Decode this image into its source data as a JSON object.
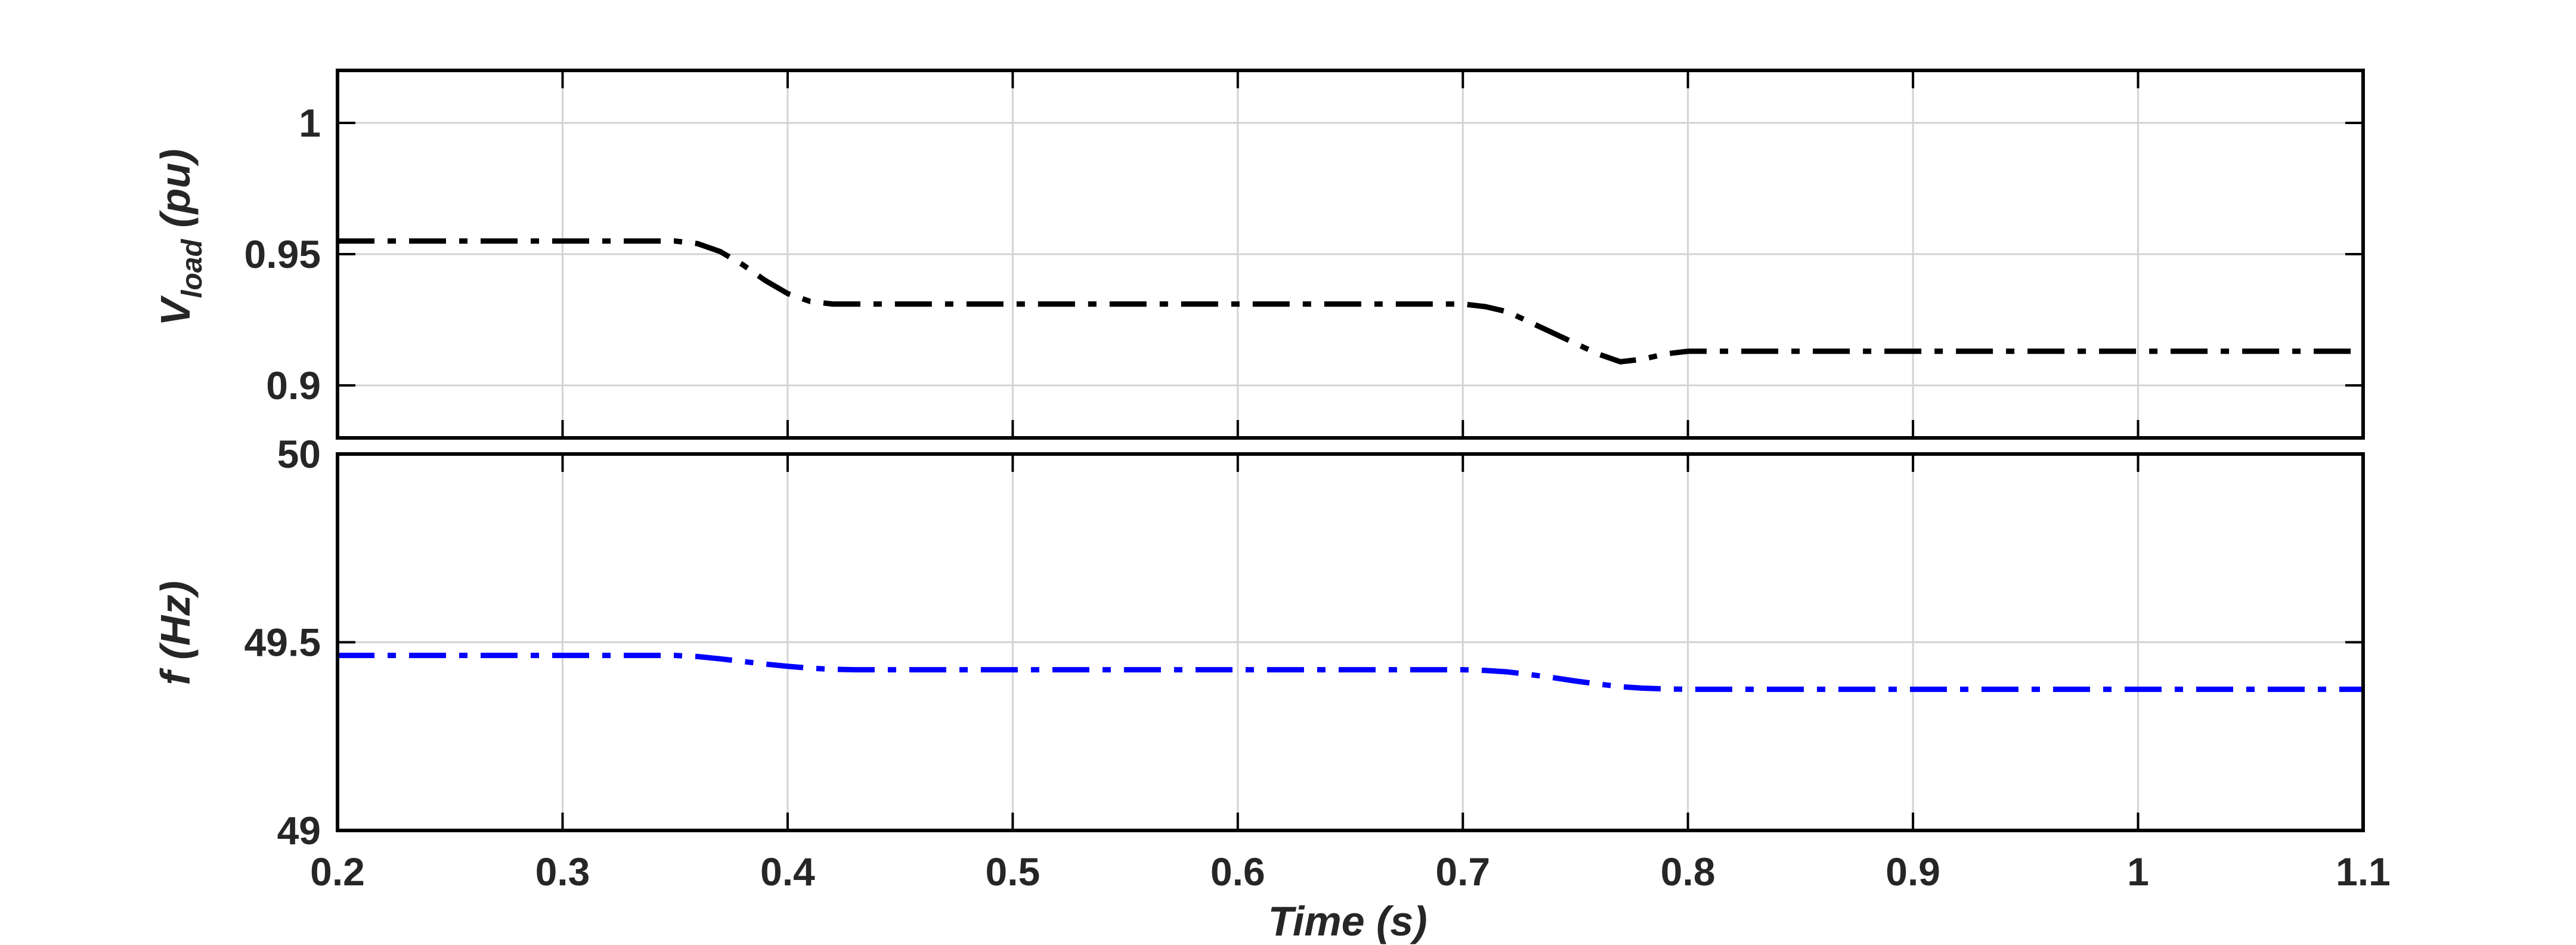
{
  "colors": {
    "background": "#ffffff",
    "frame": "#000000",
    "grid": "#d3d3d3",
    "text": "#262626"
  },
  "chart_data": [
    {
      "type": "line",
      "xlabel": "",
      "ylabel_main": "V",
      "ylabel_sub": "load",
      "ylabel_rest": " (pu)",
      "xlim": [
        0.2,
        1.1
      ],
      "ylim": [
        0.88,
        1.02
      ],
      "xticks": [
        0.2,
        0.3,
        0.4,
        0.5,
        0.6,
        0.7,
        0.8,
        0.9,
        1.0,
        1.1
      ],
      "yticks": [
        0.9,
        0.95,
        1.0
      ],
      "ytick_labels": [
        "0.9",
        "0.95",
        "1"
      ],
      "grid": true,
      "series": [
        {
          "color": "#000000",
          "line_style": "dash-dot",
          "x": [
            0.2,
            0.35,
            0.36,
            0.37,
            0.38,
            0.39,
            0.4,
            0.41,
            0.42,
            0.43,
            0.44,
            0.7,
            0.71,
            0.72,
            0.73,
            0.74,
            0.75,
            0.76,
            0.77,
            0.78,
            0.79,
            0.8,
            1.1
          ],
          "y": [
            0.955,
            0.955,
            0.954,
            0.951,
            0.946,
            0.94,
            0.935,
            0.932,
            0.931,
            0.931,
            0.931,
            0.931,
            0.93,
            0.928,
            0.924,
            0.92,
            0.916,
            0.912,
            0.909,
            0.91,
            0.912,
            0.913,
            0.913
          ]
        }
      ]
    },
    {
      "type": "line",
      "xlabel": "Time (s)",
      "ylabel": "f (Hz)",
      "xlim": [
        0.2,
        1.1
      ],
      "ylim": [
        49,
        50
      ],
      "xticks": [
        0.2,
        0.3,
        0.4,
        0.5,
        0.6,
        0.7,
        0.8,
        0.9,
        1.0,
        1.1
      ],
      "xtick_labels": [
        "0.2",
        "0.3",
        "0.4",
        "0.5",
        "0.6",
        "0.7",
        "0.8",
        "0.9",
        "1",
        "1.1"
      ],
      "yticks": [
        49,
        49.5,
        50
      ],
      "ytick_labels": [
        "49",
        "49.5",
        "50"
      ],
      "grid": true,
      "series": [
        {
          "color": "#0000ff",
          "line_style": "dash-dot",
          "x": [
            0.2,
            0.35,
            0.36,
            0.37,
            0.38,
            0.39,
            0.4,
            0.41,
            0.42,
            0.43,
            0.44,
            0.7,
            0.71,
            0.72,
            0.73,
            0.74,
            0.75,
            0.76,
            0.77,
            0.78,
            0.79,
            0.8,
            1.1
          ],
          "y": [
            49.465,
            49.465,
            49.462,
            49.456,
            49.449,
            49.442,
            49.436,
            49.431,
            49.428,
            49.427,
            49.427,
            49.427,
            49.425,
            49.421,
            49.414,
            49.406,
            49.397,
            49.389,
            49.382,
            49.378,
            49.376,
            49.375,
            49.375
          ]
        }
      ]
    }
  ]
}
